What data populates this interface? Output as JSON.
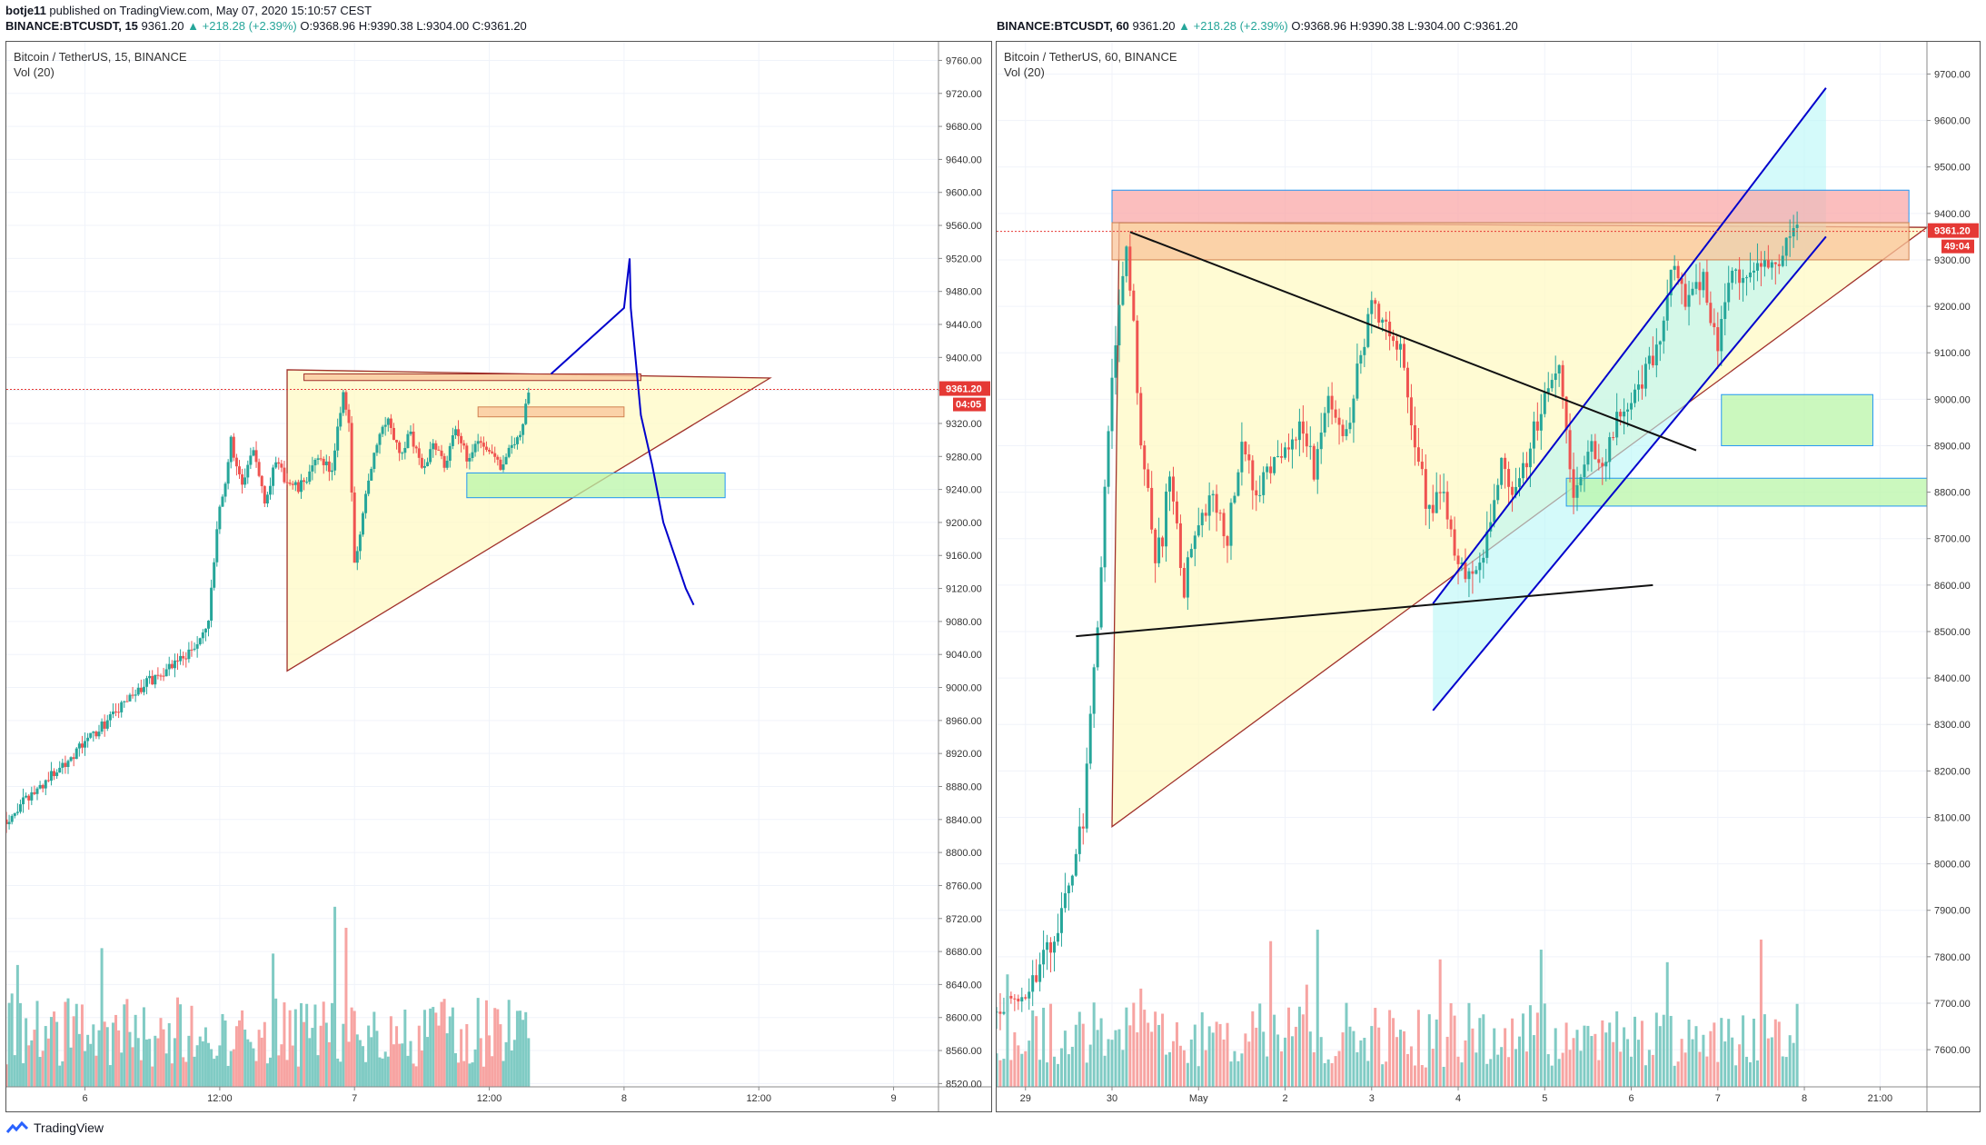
{
  "header": {
    "author": "botje11",
    "published": "published on TradingView.com, May 07, 2020 15:10:57 CEST",
    "left": {
      "symbol": "BINANCE:BTCUSDT, 15",
      "price": "9361.20",
      "change": "▲ +218.28 (+2.39%)",
      "o": "O:9368.96",
      "h": "H:9390.38",
      "l": "L:9304.00",
      "c": "C:9361.20"
    },
    "right": {
      "symbol": "BINANCE:BTCUSDT, 60",
      "price": "9361.20",
      "change": "▲ +218.28 (+2.39%)",
      "o": "O:9368.96",
      "h": "H:9390.38",
      "l": "L:9304.00",
      "c": "C:9361.20"
    }
  },
  "footer": {
    "brand": "TradingView"
  },
  "colors": {
    "up": "#26a69a",
    "down": "#ef5350",
    "vol_up": "#80cbc4",
    "vol_down": "#f7a4a2",
    "price_line": "#e53935",
    "triangle_fill": "#fff9c4",
    "triangle_line": "#a0302a",
    "channel_line": "#0000cc",
    "green_box": "#b9f6a8",
    "red_box": "#f9a8a8",
    "orange_box": "#f9c49a",
    "cyan_fill": "#b8f6f6"
  },
  "chart_data": [
    {
      "type": "candlestick",
      "title": "Bitcoin / TetherUS, 15, BINANCE",
      "subtitle": "Vol (20)",
      "y_ticks": [
        8520,
        8560,
        8600,
        8640,
        8680,
        8720,
        8760,
        8800,
        8840,
        8880,
        8920,
        8960,
        9000,
        9040,
        9080,
        9120,
        9160,
        9200,
        9240,
        9280,
        9320,
        9360,
        9400,
        9440,
        9480,
        9520,
        9560,
        9600,
        9640,
        9680,
        9720,
        9760
      ],
      "ylim": [
        8516,
        9766
      ],
      "x_tick_labels": [
        "6",
        "12:00",
        "7",
        "12:00",
        "8",
        "12:00",
        "9"
      ],
      "x_tick_times": [
        0,
        12,
        24,
        36,
        48,
        60,
        72
      ],
      "xlim": [
        -7,
        76
      ],
      "last_price": "9361.20",
      "countdown": "04:05",
      "price_path_times": [
        -7,
        -4,
        -1,
        2,
        5,
        8,
        10,
        11,
        11.5,
        12,
        12.5,
        13,
        14,
        15,
        16,
        17,
        18,
        19,
        20,
        21,
        22,
        23,
        23.5,
        24,
        24.5,
        25,
        26,
        27,
        28,
        29,
        30,
        31,
        32,
        33,
        34,
        35,
        36,
        37,
        38,
        39,
        39.5
      ],
      "price_path_values": [
        8840,
        8880,
        8920,
        8960,
        9000,
        9030,
        9050,
        9080,
        9150,
        9220,
        9250,
        9300,
        9240,
        9290,
        9230,
        9270,
        9250,
        9240,
        9260,
        9280,
        9260,
        9360,
        9320,
        9150,
        9180,
        9240,
        9300,
        9330,
        9280,
        9310,
        9260,
        9300,
        9270,
        9310,
        9280,
        9300,
        9290,
        9270,
        9290,
        9320,
        9361
      ],
      "volume_scale_max": 150,
      "drawings": {
        "triangle": {
          "points": [
            [
              18,
              9385
            ],
            [
              61,
              9375
            ],
            [
              18,
              9020
            ]
          ]
        },
        "top_box": {
          "t0": 19.5,
          "t1": 49.5,
          "p0": 9380,
          "p1": 9372
        },
        "orange_box": {
          "t0": 35,
          "t1": 48,
          "p0": 9340,
          "p1": 9328
        },
        "green_box": {
          "t0": 34,
          "t1": 57,
          "p0": 9260,
          "p1": 9230
        },
        "projection": [
          [
            41.5,
            9380
          ],
          [
            48,
            9460
          ],
          [
            48.5,
            9520
          ],
          [
            48.6,
            9460
          ],
          [
            49.5,
            9330
          ],
          [
            50.5,
            9270
          ],
          [
            51.5,
            9200
          ],
          [
            52.5,
            9160
          ],
          [
            53.5,
            9120
          ],
          [
            54.2,
            9100
          ]
        ]
      }
    },
    {
      "type": "candlestick",
      "title": "Bitcoin / TetherUS, 60, BINANCE",
      "subtitle": "Vol (20)",
      "y_ticks": [
        7600,
        7700,
        7800,
        7900,
        8000,
        8100,
        8200,
        8300,
        8400,
        8500,
        8600,
        8700,
        8800,
        8900,
        9000,
        9100,
        9200,
        9300,
        9400,
        9500,
        9600,
        9700
      ],
      "ylim": [
        7520,
        9740
      ],
      "x_tick_labels": [
        "29",
        "30",
        "May",
        "2",
        "3",
        "4",
        "5",
        "6",
        "7",
        "8",
        "21:00"
      ],
      "x_tick_times": [
        0,
        24,
        48,
        72,
        96,
        120,
        144,
        168,
        192,
        216,
        237
      ],
      "xlim": [
        -8,
        250
      ],
      "last_price": "9361.20",
      "countdown": "49:04",
      "price_path_times": [
        -8,
        0,
        4,
        8,
        12,
        16,
        18,
        20,
        22,
        24,
        26,
        28,
        30,
        32,
        34,
        36,
        38,
        40,
        44,
        48,
        52,
        56,
        60,
        64,
        68,
        72,
        76,
        80,
        84,
        88,
        92,
        96,
        100,
        104,
        108,
        112,
        116,
        120,
        124,
        128,
        132,
        136,
        140,
        144,
        148,
        152,
        156,
        160,
        164,
        168,
        172,
        176,
        180,
        184,
        188,
        192,
        196,
        200,
        204,
        208,
        212,
        214
      ],
      "price_path_values": [
        7680,
        7720,
        7780,
        7850,
        7960,
        8100,
        8300,
        8500,
        8800,
        9050,
        9200,
        9350,
        9150,
        8900,
        8800,
        8650,
        8700,
        8850,
        8600,
        8750,
        8800,
        8700,
        8900,
        8800,
        8850,
        8900,
        8950,
        8850,
        9000,
        8900,
        9050,
        9200,
        9150,
        9100,
        8900,
        8750,
        8800,
        8650,
        8620,
        8700,
        8850,
        8800,
        8900,
        9000,
        9050,
        8800,
        8900,
        8850,
        8950,
        9000,
        9050,
        9150,
        9300,
        9200,
        9280,
        9100,
        9300,
        9250,
        9280,
        9300,
        9340,
        9361
      ],
      "volume_scale_max": 1000,
      "drawings": {
        "red_box": {
          "t0": 24,
          "t1": 245,
          "p0": 9450,
          "p1": 9380
        },
        "orange_box": {
          "t0": 24,
          "t1": 245,
          "p0": 9380,
          "p1": 9300
        },
        "triangle": {
          "points": [
            [
              26,
              9380
            ],
            [
              250,
              9370
            ],
            [
              24,
              8080
            ]
          ]
        },
        "cyan_channel": {
          "t0": 113,
          "t1": 222,
          "upper": [
            [
              113,
              8560
            ],
            [
              222,
              9670
            ]
          ],
          "lower": [
            [
              113,
              8330
            ],
            [
              222,
              9350
            ]
          ]
        },
        "black_line_top": [
          [
            29,
            9360
          ],
          [
            186,
            8890
          ]
        ],
        "black_line_bottom": [
          [
            14,
            8490
          ],
          [
            174,
            8600
          ]
        ],
        "green_box_1": {
          "t0": 193,
          "t1": 235,
          "p0": 9010,
          "p1": 8900
        },
        "green_box_2": {
          "t0": 150,
          "t1": 250,
          "p0": 8830,
          "p1": 8770
        }
      }
    }
  ]
}
